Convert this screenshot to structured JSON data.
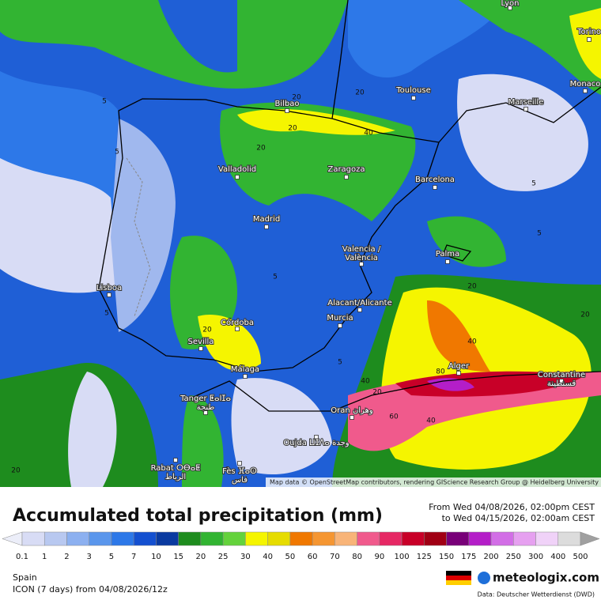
{
  "map": {
    "cities": [
      {
        "name": "Lyon"
      },
      {
        "name": "Torino"
      },
      {
        "name": "Monaco"
      },
      {
        "name": "Marseille"
      },
      {
        "name": "Toulouse"
      },
      {
        "name": "Bilbao"
      },
      {
        "name": "Zaragoza"
      },
      {
        "name": "Barcelona"
      },
      {
        "name": "Valladolid"
      },
      {
        "name": "Madrid"
      },
      {
        "name": "Valencia /",
        "name2": "València"
      },
      {
        "name": "Palma"
      },
      {
        "name": "Lisboa"
      },
      {
        "name": "Alacant/Alicante"
      },
      {
        "name": "Murcia"
      },
      {
        "name": "Córdoba"
      },
      {
        "name": "Sevilla"
      },
      {
        "name": "Málaga"
      },
      {
        "name": "Alger"
      },
      {
        "name": "Constantine",
        "name2": "قسنطينة"
      },
      {
        "name": "Tanger ⵟⴰⵏⵊⴰ",
        "name2": "طنجة"
      },
      {
        "name": "Oran وهران"
      },
      {
        "name": "Oujda ⵡⵊⴷⴰ وجدة"
      },
      {
        "name": "Rabat ⵔⴱⴰⵟ",
        "name2": "الرباط"
      },
      {
        "name": "Fès ⴼⴰⵙ",
        "name2": "فاس"
      }
    ],
    "contour_labels": [
      5,
      5,
      20,
      20,
      20,
      40,
      20,
      5,
      5,
      20,
      20,
      40,
      5,
      5,
      20,
      5,
      40,
      80,
      20,
      60,
      40,
      20
    ],
    "attribution": "Map data © OpenStreetMap contributors, rendering GIScience Research Group @ Heidelberg University"
  },
  "legend": {
    "title": "Accumulated total precipitation (mm)",
    "period_from": "From Wed 04/08/2026, 02:00pm CEST",
    "period_to": "to Wed 04/15/2026, 02:00am CEST",
    "labels": [
      0.1,
      1,
      2,
      3,
      5,
      7,
      10,
      15,
      20,
      25,
      30,
      40,
      50,
      60,
      70,
      80,
      90,
      100,
      125,
      150,
      175,
      200,
      250,
      300,
      400,
      500
    ],
    "colors": [
      "#eceef9",
      "#d8dcf5",
      "#b8c8f0",
      "#8cb0f0",
      "#5a96ec",
      "#2d78e8",
      "#1450d0",
      "#0a3aa0",
      "#1e8c1e",
      "#32b432",
      "#64d23c",
      "#f5f500",
      "#e6dc00",
      "#f07800",
      "#f59632",
      "#f8b478",
      "#f05a8c",
      "#e62864",
      "#c80028",
      "#a00014",
      "#780078",
      "#b41ec8",
      "#d26ee6",
      "#e6a0f0",
      "#f0d2f8",
      "#dcdcdc",
      "#a0a0a0"
    ],
    "region": "Spain",
    "model": "ICON (7 days) from 04/08/2026/12z",
    "brand": "meteologix.com",
    "source": "Data: Deutscher Wetterdienst (DWD)"
  }
}
